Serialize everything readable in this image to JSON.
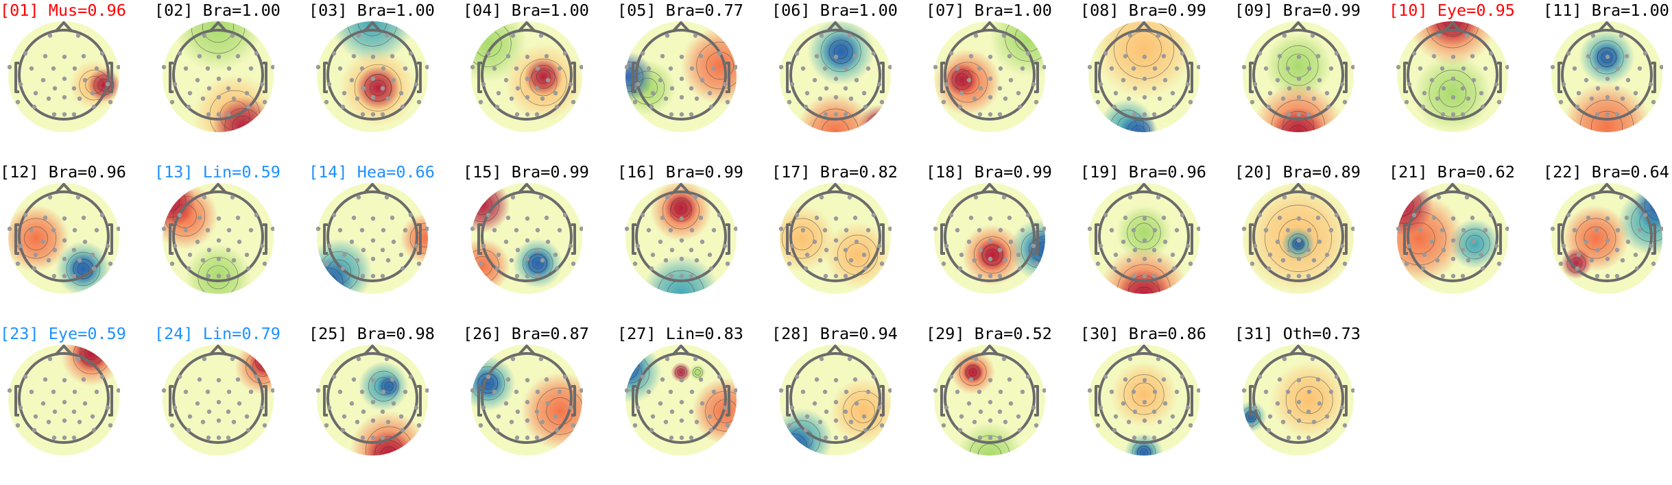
{
  "colors": {
    "flagged": "#ff0000",
    "uncertain": "#1e90ff",
    "normal": "#000000",
    "positive": "#b2183b",
    "negative": "#2b5fae",
    "neutral": "#f4f9c0",
    "head_outline": "#6b6b6b",
    "sensor": "#9a9a9a",
    "contour": "#333333"
  },
  "chart_data": {
    "type": "topomap-grid",
    "layout": {
      "columns": 11,
      "rows": 3
    },
    "colormap": "Spectral_r",
    "components": [
      {
        "title": "[01] Mus=0.96",
        "index": 1,
        "label": "Mus",
        "score": 0.96,
        "status": "flagged"
      },
      {
        "title": "[02] Bra=1.00",
        "index": 2,
        "label": "Bra",
        "score": 1.0,
        "status": "normal"
      },
      {
        "title": "[03] Bra=1.00",
        "index": 3,
        "label": "Bra",
        "score": 1.0,
        "status": "normal"
      },
      {
        "title": "[04] Bra=1.00",
        "index": 4,
        "label": "Bra",
        "score": 1.0,
        "status": "normal"
      },
      {
        "title": "[05] Bra=0.77",
        "index": 5,
        "label": "Bra",
        "score": 0.77,
        "status": "normal"
      },
      {
        "title": "[06] Bra=1.00",
        "index": 6,
        "label": "Bra",
        "score": 1.0,
        "status": "normal"
      },
      {
        "title": "[07] Bra=1.00",
        "index": 7,
        "label": "Bra",
        "score": 1.0,
        "status": "normal"
      },
      {
        "title": "[08] Bra=0.99",
        "index": 8,
        "label": "Bra",
        "score": 0.99,
        "status": "normal"
      },
      {
        "title": "[09] Bra=0.99",
        "index": 9,
        "label": "Bra",
        "score": 0.99,
        "status": "normal"
      },
      {
        "title": "[10] Eye=0.95",
        "index": 10,
        "label": "Eye",
        "score": 0.95,
        "status": "flagged"
      },
      {
        "title": "[11] Bra=1.00",
        "index": 11,
        "label": "Bra",
        "score": 1.0,
        "status": "normal"
      },
      {
        "title": "[12] Bra=0.96",
        "index": 12,
        "label": "Bra",
        "score": 0.96,
        "status": "normal"
      },
      {
        "title": "[13] Lin=0.59",
        "index": 13,
        "label": "Lin",
        "score": 0.59,
        "status": "uncertain"
      },
      {
        "title": "[14] Hea=0.66",
        "index": 14,
        "label": "Hea",
        "score": 0.66,
        "status": "uncertain"
      },
      {
        "title": "[15] Bra=0.99",
        "index": 15,
        "label": "Bra",
        "score": 0.99,
        "status": "normal"
      },
      {
        "title": "[16] Bra=0.99",
        "index": 16,
        "label": "Bra",
        "score": 0.99,
        "status": "normal"
      },
      {
        "title": "[17] Bra=0.82",
        "index": 17,
        "label": "Bra",
        "score": 0.82,
        "status": "normal"
      },
      {
        "title": "[18] Bra=0.99",
        "index": 18,
        "label": "Bra",
        "score": 0.99,
        "status": "normal"
      },
      {
        "title": "[19] Bra=0.96",
        "index": 19,
        "label": "Bra",
        "score": 0.96,
        "status": "normal"
      },
      {
        "title": "[20] Bra=0.89",
        "index": 20,
        "label": "Bra",
        "score": 0.89,
        "status": "normal"
      },
      {
        "title": "[21] Bra=0.62",
        "index": 21,
        "label": "Bra",
        "score": 0.62,
        "status": "normal"
      },
      {
        "title": "[22] Bra=0.64",
        "index": 22,
        "label": "Bra",
        "score": 0.64,
        "status": "normal"
      },
      {
        "title": "[23] Eye=0.59",
        "index": 23,
        "label": "Eye",
        "score": 0.59,
        "status": "uncertain"
      },
      {
        "title": "[24] Lin=0.79",
        "index": 24,
        "label": "Lin",
        "score": 0.79,
        "status": "uncertain"
      },
      {
        "title": "[25] Bra=0.98",
        "index": 25,
        "label": "Bra",
        "score": 0.98,
        "status": "normal"
      },
      {
        "title": "[26] Bra=0.87",
        "index": 26,
        "label": "Bra",
        "score": 0.87,
        "status": "normal"
      },
      {
        "title": "[27] Lin=0.83",
        "index": 27,
        "label": "Lin",
        "score": 0.83,
        "status": "normal"
      },
      {
        "title": "[28] Bra=0.94",
        "index": 28,
        "label": "Bra",
        "score": 0.94,
        "status": "normal"
      },
      {
        "title": "[29] Bra=0.52",
        "index": 29,
        "label": "Bra",
        "score": 0.52,
        "status": "normal"
      },
      {
        "title": "[30] Bra=0.86",
        "index": 30,
        "label": "Bra",
        "score": 0.86,
        "status": "normal"
      },
      {
        "title": "[31] Oth=0.73",
        "index": 31,
        "label": "Oth",
        "score": 0.73,
        "status": "normal"
      }
    ]
  }
}
